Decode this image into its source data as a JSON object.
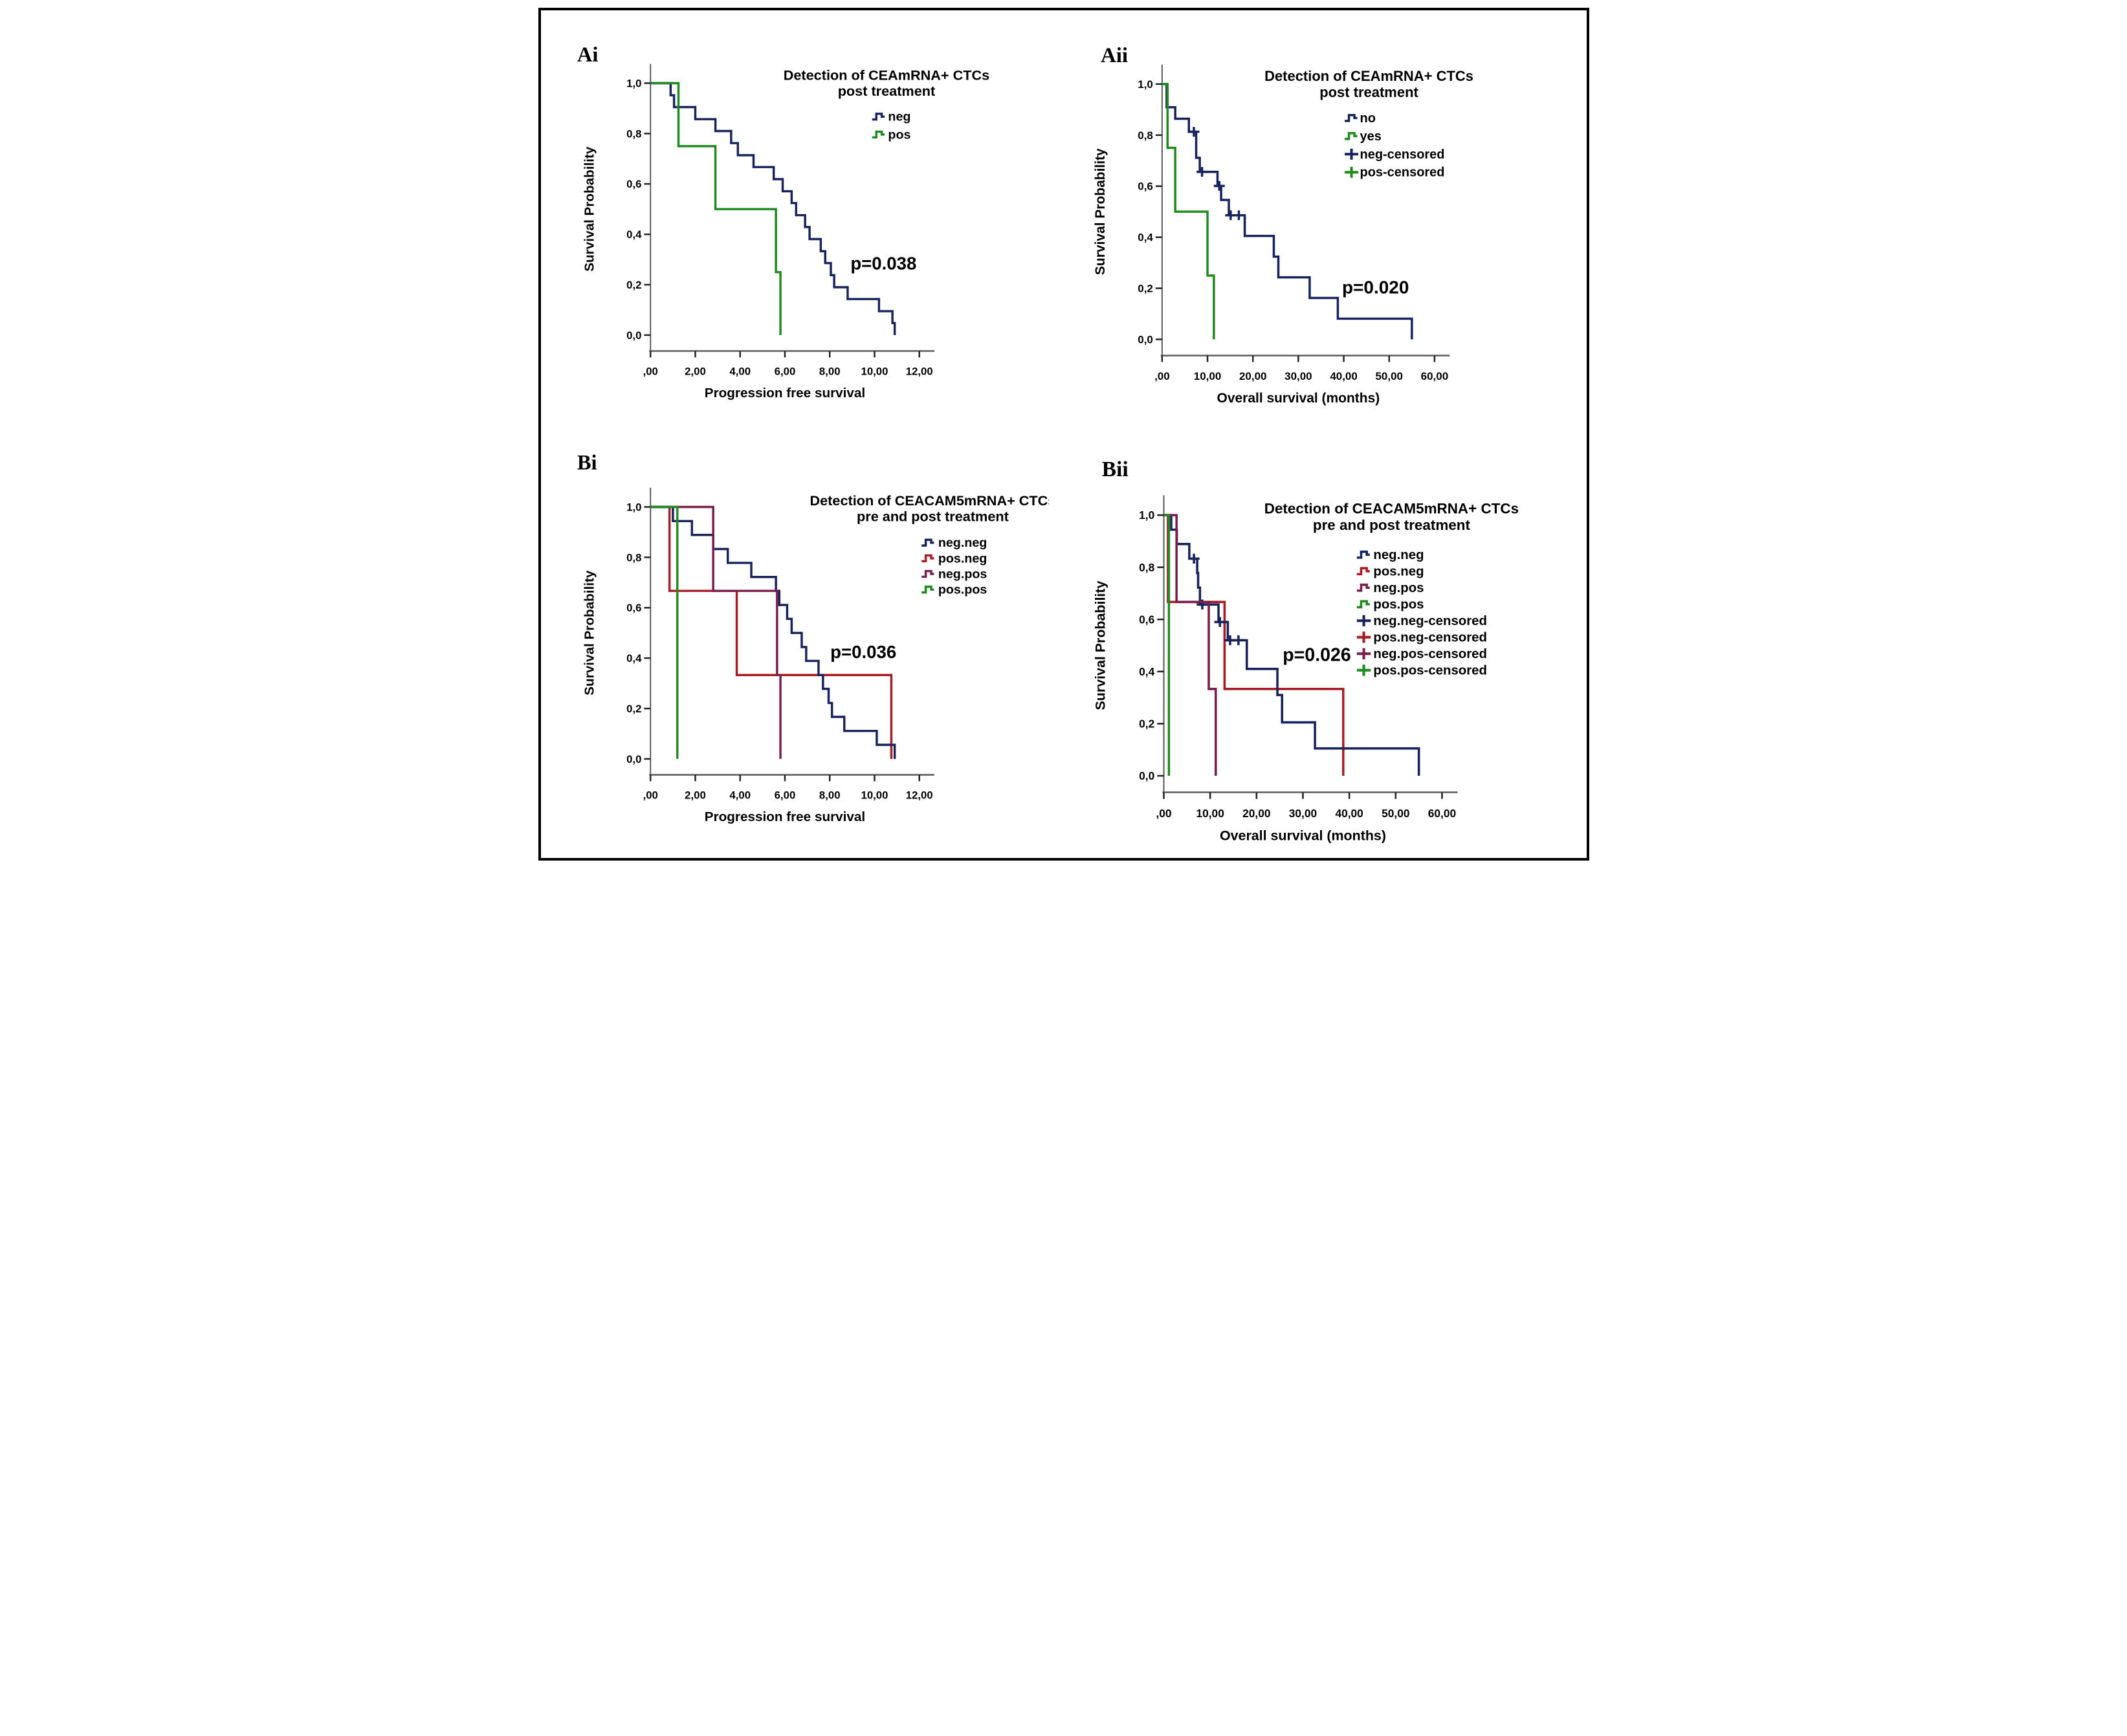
{
  "figure": {
    "background": "#ffffff",
    "border_color": "#000000",
    "colors": {
      "navy": "#18235d",
      "green": "#1f8b1f",
      "red": "#a81c24",
      "maroon": "#7a1e4c",
      "axis": "#5a5a5a",
      "text": "#000000"
    }
  },
  "chart_data": [
    {
      "id": "ai",
      "type": "line",
      "panel_label": "Ai",
      "title_lines": [
        "Detection of CEAmRNA+ CTCs",
        "post treatment"
      ],
      "x_axis": {
        "title": "Progression free survival",
        "tick_labels": [
          ",00",
          "2,00",
          "4,00",
          "6,00",
          "8,00",
          "10,00",
          "12,00"
        ],
        "tick_values": [
          0,
          2,
          4,
          6,
          8,
          10,
          12
        ],
        "xlim": [
          0,
          12.6
        ]
      },
      "y_axis": {
        "title": "Survival Probability",
        "tick_labels": [
          "1,0",
          "0,8",
          "0,6",
          "0,4",
          "0,2",
          "0,0"
        ],
        "tick_values": [
          1.0,
          0.8,
          0.6,
          0.4,
          0.2,
          0.0
        ],
        "ylim": [
          0,
          1
        ]
      },
      "series": [
        {
          "name": "neg",
          "color": "navy",
          "z": 1,
          "points": [
            [
              0.9,
              0.952
            ],
            [
              1.05,
              0.905
            ],
            [
              2.0,
              0.857
            ],
            [
              2.9,
              0.81
            ],
            [
              3.6,
              0.762
            ],
            [
              3.9,
              0.714
            ],
            [
              4.6,
              0.667
            ],
            [
              5.5,
              0.619
            ],
            [
              5.9,
              0.571
            ],
            [
              6.3,
              0.524
            ],
            [
              6.5,
              0.476
            ],
            [
              6.9,
              0.429
            ],
            [
              7.1,
              0.381
            ],
            [
              7.6,
              0.333
            ],
            [
              7.8,
              0.286
            ],
            [
              8.05,
              0.238
            ],
            [
              8.2,
              0.19
            ],
            [
              8.8,
              0.143
            ],
            [
              10.2,
              0.095
            ],
            [
              10.8,
              0.048
            ],
            [
              10.9,
              0.0
            ]
          ],
          "censored": []
        },
        {
          "name": "pos",
          "color": "green",
          "z": 2,
          "points": [
            [
              1.25,
              0.75
            ],
            [
              2.9,
              0.5
            ],
            [
              5.6,
              0.25
            ],
            [
              5.8,
              0.0
            ]
          ],
          "censored": []
        }
      ],
      "legend_items": [
        {
          "label": "neg",
          "color": "navy",
          "glyph": "step"
        },
        {
          "label": "pos",
          "color": "green",
          "glyph": "step"
        }
      ],
      "p_value": {
        "text": "p=0.038",
        "x": 10.4,
        "y": 0.26
      }
    },
    {
      "id": "aii",
      "type": "line",
      "panel_label": "Aii",
      "title_lines": [
        "Detection of CEAmRNA+ CTCs",
        "post treatment"
      ],
      "x_axis": {
        "title": "Overall survival (months)",
        "tick_labels": [
          ",00",
          "10,00",
          "20,00",
          "30,00",
          "40,00",
          "50,00",
          "60,00"
        ],
        "tick_values": [
          0,
          10,
          20,
          30,
          40,
          50,
          60
        ],
        "xlim": [
          0,
          63
        ]
      },
      "y_axis": {
        "title": "Survival Probability",
        "tick_labels": [
          "1,0",
          "0,8",
          "0,6",
          "0,4",
          "0,2",
          "0,0"
        ],
        "tick_values": [
          1.0,
          0.8,
          0.6,
          0.4,
          0.2,
          0.0
        ],
        "ylim": [
          0,
          1
        ]
      },
      "series": [
        {
          "name": "no",
          "color": "navy",
          "z": 1,
          "points": [
            [
              1.0,
              0.909
            ],
            [
              2.9,
              0.864
            ],
            [
              5.9,
              0.813
            ],
            [
              7.5,
              0.711
            ],
            [
              8.3,
              0.656
            ],
            [
              12.2,
              0.601
            ],
            [
              13.0,
              0.546
            ],
            [
              14.7,
              0.486
            ],
            [
              18.2,
              0.405
            ],
            [
              24.6,
              0.324
            ],
            [
              25.6,
              0.243
            ],
            [
              32.5,
              0.162
            ],
            [
              38.7,
              0.081
            ],
            [
              55.0,
              0.0
            ]
          ],
          "censored": [
            [
              7.0,
              0.813
            ],
            [
              8.8,
              0.656
            ],
            [
              12.6,
              0.601
            ],
            [
              15.1,
              0.486
            ],
            [
              16.9,
              0.486
            ]
          ]
        },
        {
          "name": "yes",
          "color": "green",
          "z": 2,
          "points": [
            [
              1.2,
              0.75
            ],
            [
              2.9,
              0.5
            ],
            [
              10.0,
              0.25
            ],
            [
              11.4,
              0.0
            ]
          ],
          "censored": []
        }
      ],
      "legend_items": [
        {
          "label": "no",
          "color": "navy",
          "glyph": "step"
        },
        {
          "label": "yes",
          "color": "green",
          "glyph": "step"
        },
        {
          "label": "neg-censored",
          "color": "navy",
          "glyph": "plus"
        },
        {
          "label": "pos-censored",
          "color": "green",
          "glyph": "plus"
        }
      ],
      "p_value": {
        "text": "p=0.020",
        "x": 47,
        "y": 0.18
      }
    },
    {
      "id": "bi",
      "type": "line",
      "panel_label": "Bi",
      "title_lines": [
        "Detection of CEACAM5mRNA+ CTCs",
        "pre and post treatment"
      ],
      "x_axis": {
        "title": "Progression free survival",
        "tick_labels": [
          ",00",
          "2,00",
          "4,00",
          "6,00",
          "8,00",
          "10,00",
          "12,00"
        ],
        "tick_values": [
          0,
          2,
          4,
          6,
          8,
          10,
          12
        ],
        "xlim": [
          0,
          12.6
        ]
      },
      "y_axis": {
        "title": "Survival Probability",
        "tick_labels": [
          "1,0",
          "0,8",
          "0,6",
          "0,4",
          "0,2",
          "0,0"
        ],
        "tick_values": [
          1.0,
          0.8,
          0.6,
          0.4,
          0.2,
          0.0
        ],
        "ylim": [
          0,
          1
        ]
      },
      "series": [
        {
          "name": "neg.neg",
          "color": "navy",
          "z": 2,
          "points": [
            [
              1.0,
              0.944
            ],
            [
              1.85,
              0.889
            ],
            [
              2.8,
              0.833
            ],
            [
              3.45,
              0.778
            ],
            [
              4.5,
              0.722
            ],
            [
              5.6,
              0.667
            ],
            [
              5.75,
              0.611
            ],
            [
              6.1,
              0.556
            ],
            [
              6.3,
              0.5
            ],
            [
              6.75,
              0.444
            ],
            [
              6.95,
              0.389
            ],
            [
              7.5,
              0.333
            ],
            [
              7.7,
              0.278
            ],
            [
              7.95,
              0.222
            ],
            [
              8.1,
              0.167
            ],
            [
              8.65,
              0.111
            ],
            [
              10.1,
              0.056
            ],
            [
              10.9,
              0.0
            ]
          ],
          "censored": []
        },
        {
          "name": "pos.neg",
          "color": "red",
          "z": 1,
          "points": [
            [
              0.85,
              0.667
            ],
            [
              3.85,
              0.333
            ],
            [
              10.75,
              0.0
            ]
          ],
          "censored": []
        },
        {
          "name": "neg.pos",
          "color": "maroon",
          "z": 3,
          "points": [
            [
              2.8,
              0.667
            ],
            [
              5.65,
              0.333
            ],
            [
              5.8,
              0.0
            ]
          ],
          "censored": []
        },
        {
          "name": "pos.pos",
          "color": "green",
          "z": 4,
          "points": [
            [
              1.2,
              0.0
            ]
          ],
          "censored": []
        }
      ],
      "legend_items": [
        {
          "label": "neg.neg",
          "color": "navy",
          "glyph": "step"
        },
        {
          "label": "pos.neg",
          "color": "red",
          "glyph": "step"
        },
        {
          "label": "neg.pos",
          "color": "maroon",
          "glyph": "step"
        },
        {
          "label": "pos.pos",
          "color": "green",
          "glyph": "step"
        }
      ],
      "p_value": {
        "text": "p=0.036",
        "x": 9.5,
        "y": 0.4
      }
    },
    {
      "id": "bii",
      "type": "line",
      "panel_label": "Bii",
      "title_lines": [
        "Detection of CEACAM5mRNA+ CTCs",
        "pre and post treatment"
      ],
      "x_axis": {
        "title": "Overall survival (months)",
        "tick_labels": [
          ",00",
          "10,00",
          "20,00",
          "30,00",
          "40,00",
          "50,00",
          "60,00"
        ],
        "tick_values": [
          0,
          10,
          20,
          30,
          40,
          50,
          60
        ],
        "xlim": [
          0,
          63
        ]
      },
      "y_axis": {
        "title": "Survival Probability",
        "tick_labels": [
          "1,0",
          "0,8",
          "0,6",
          "0,4",
          "0,2",
          "0,0"
        ],
        "tick_values": [
          1.0,
          0.8,
          0.6,
          0.4,
          0.2,
          0.0
        ],
        "ylim": [
          0,
          1
        ]
      },
      "series": [
        {
          "name": "neg.neg",
          "color": "navy",
          "z": 2,
          "points": [
            [
              1.6,
              0.944
            ],
            [
              2.8,
              0.889
            ],
            [
              5.5,
              0.833
            ],
            [
              7.2,
              0.778
            ],
            [
              7.4,
              0.722
            ],
            [
              7.8,
              0.657
            ],
            [
              11.8,
              0.59
            ],
            [
              13.8,
              0.52
            ],
            [
              17.9,
              0.41
            ],
            [
              24.5,
              0.31
            ],
            [
              25.5,
              0.205
            ],
            [
              32.6,
              0.105
            ],
            [
              55.0,
              0.0
            ]
          ],
          "censored": [
            [
              6.5,
              0.833
            ],
            [
              8.3,
              0.657
            ],
            [
              12.1,
              0.59
            ],
            [
              14.3,
              0.52
            ],
            [
              16.1,
              0.52
            ]
          ]
        },
        {
          "name": "pos.neg",
          "color": "red",
          "z": 1,
          "points": [
            [
              0.9,
              0.667
            ],
            [
              13.1,
              0.333
            ],
            [
              38.7,
              0.0
            ]
          ],
          "censored": []
        },
        {
          "name": "neg.pos",
          "color": "maroon",
          "z": 3,
          "points": [
            [
              2.75,
              0.667
            ],
            [
              9.7,
              0.333
            ],
            [
              11.2,
              0.0
            ]
          ],
          "censored": []
        },
        {
          "name": "pos.pos",
          "color": "green",
          "z": 4,
          "points": [
            [
              1.1,
              0.0
            ]
          ],
          "censored": []
        }
      ],
      "legend_items": [
        {
          "label": "neg.neg",
          "color": "navy",
          "glyph": "step"
        },
        {
          "label": "pos.neg",
          "color": "red",
          "glyph": "step"
        },
        {
          "label": "neg.pos",
          "color": "maroon",
          "glyph": "step"
        },
        {
          "label": "pos.pos",
          "color": "green",
          "glyph": "step"
        },
        {
          "label": "neg.neg-censored",
          "color": "navy",
          "glyph": "plus"
        },
        {
          "label": "pos.neg-censored",
          "color": "red",
          "glyph": "plus"
        },
        {
          "label": "neg.pos-censored",
          "color": "maroon",
          "glyph": "plus"
        },
        {
          "label": "pos.pos-censored",
          "color": "green",
          "glyph": "plus"
        }
      ],
      "p_value": {
        "text": "p=0.026",
        "x": 33,
        "y": 0.44
      }
    }
  ]
}
